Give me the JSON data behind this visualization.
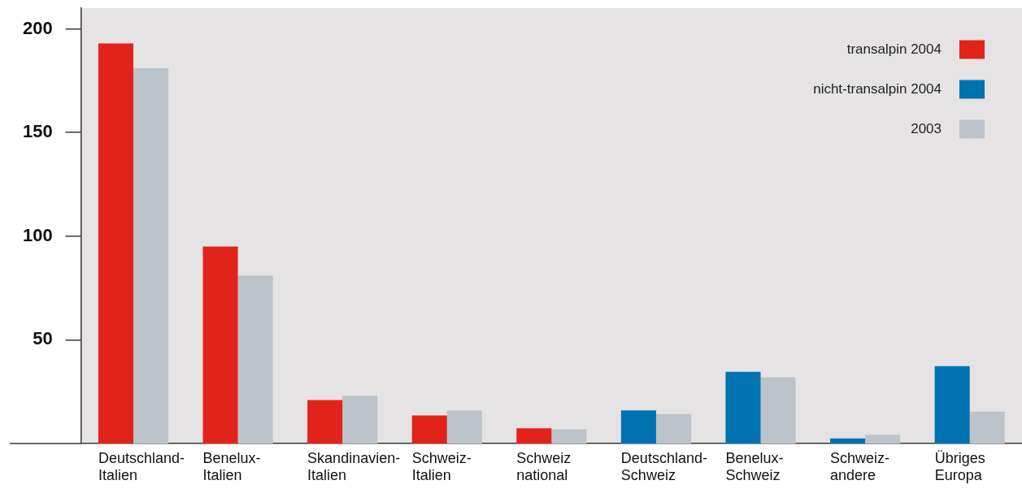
{
  "chart_data": {
    "type": "bar",
    "categories": [
      "Deutschland-Italien",
      "Benelux-Italien",
      "Skandinavien-Italien",
      "Schweiz-Italien",
      "Schweiz national",
      "Deutschland-Schweiz",
      "Benelux-Schweiz",
      "Schweiz-andere",
      "Übriges Europa"
    ],
    "series": [
      {
        "name": "transalpin 2004",
        "color": "#e2231a",
        "values": [
          193,
          95,
          21,
          13.5,
          7.3,
          null,
          null,
          null,
          null
        ]
      },
      {
        "name": "nicht-transalpin 2004",
        "color": "#0072b1",
        "values": [
          null,
          null,
          null,
          null,
          null,
          16,
          34.6,
          2.4,
          37.3
        ]
      },
      {
        "name": "2003",
        "color": "#bcc3ca",
        "values": [
          181,
          81,
          23,
          16,
          6.9,
          14.2,
          31.9,
          4.2,
          15.4
        ]
      }
    ],
    "ylim": [
      0,
      210
    ],
    "yticks": [
      50,
      100,
      150,
      200
    ],
    "legend": "top right"
  }
}
